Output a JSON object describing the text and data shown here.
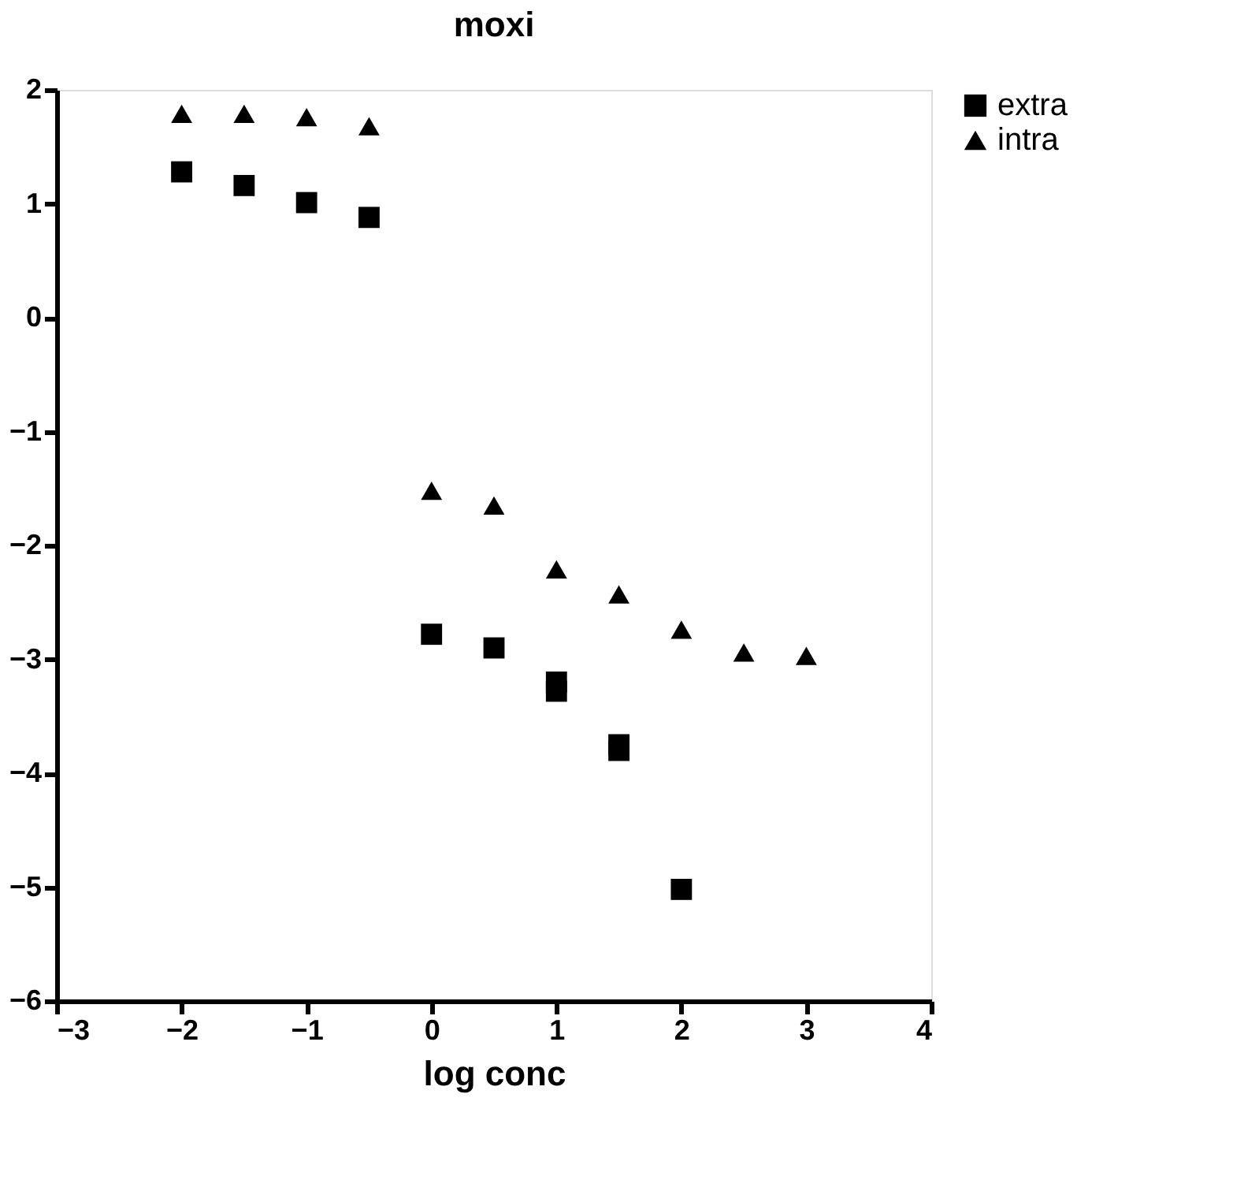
{
  "chart_data": {
    "type": "scatter",
    "title": "moxi",
    "xlabel": "log conc",
    "xlim": [
      -3,
      4
    ],
    "xticks": [
      -3,
      -2,
      -1,
      0,
      1,
      2,
      3,
      4
    ],
    "ylim": [
      -6,
      2
    ],
    "yticks": [
      -6,
      -5,
      -4,
      -3,
      -2,
      -1,
      0,
      1,
      2
    ],
    "grid": false,
    "legend": "right",
    "series": [
      {
        "name": "extra",
        "color": "#000000",
        "marker": "square",
        "x": [
          -2,
          -1.5,
          -1,
          -0.5,
          0,
          0.5,
          1,
          1,
          1.5,
          1.5,
          2
        ],
        "values": [
          1.28,
          1.16,
          1.01,
          0.88,
          -2.78,
          -2.9,
          -3.2,
          -3.28,
          -3.75,
          -3.8,
          -5.02
        ]
      },
      {
        "name": "intra",
        "color": "#000000",
        "marker": "triangle",
        "x": [
          -2,
          -1.5,
          -1,
          -0.5,
          0,
          0.5,
          1,
          1.5,
          2,
          2.5,
          3
        ],
        "values": [
          1.79,
          1.79,
          1.76,
          1.68,
          -1.52,
          -1.65,
          -2.21,
          -2.43,
          -2.74,
          -2.94,
          -2.97
        ]
      }
    ]
  }
}
